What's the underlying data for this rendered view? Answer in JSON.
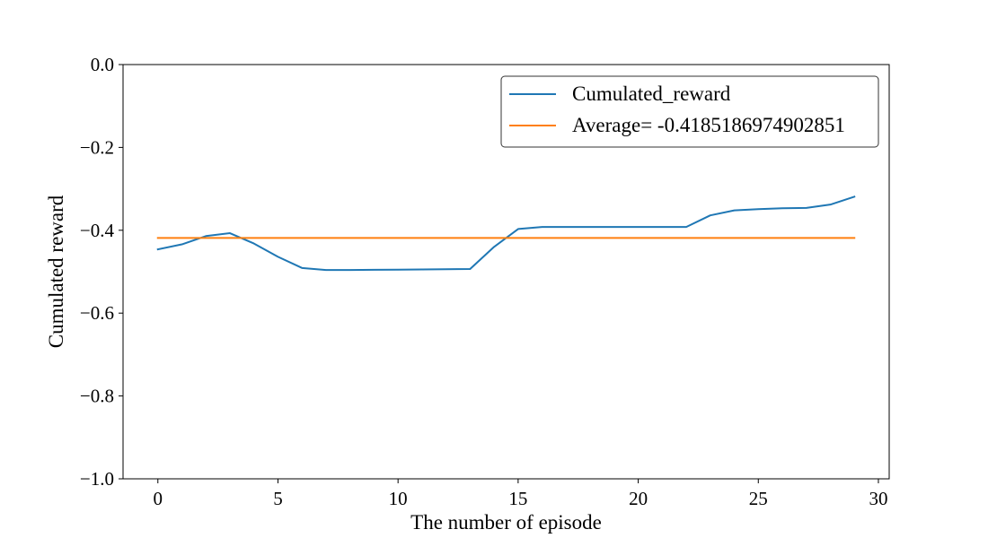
{
  "chart_data": {
    "type": "line",
    "title": "",
    "xlabel": "The number of episode",
    "ylabel": "Cumulated reward",
    "xlim": [
      -1.45,
      30.45
    ],
    "ylim": [
      -1.0,
      0.0
    ],
    "xticks": [
      0,
      5,
      10,
      15,
      20,
      25,
      30
    ],
    "xtick_labels": [
      "0",
      "5",
      "10",
      "15",
      "20",
      "25",
      "30"
    ],
    "yticks": [
      0.0,
      -0.2,
      -0.4,
      -0.6,
      -0.8,
      -1.0
    ],
    "ytick_labels": [
      "0.0",
      "−0.2",
      "−0.4",
      "−0.6",
      "−0.8",
      "−1.0"
    ],
    "grid": false,
    "legend_position": "top-right",
    "series": [
      {
        "name": "Cumulated_reward",
        "color": "#1f77b4",
        "x": [
          0,
          1,
          2,
          3,
          4,
          5,
          6,
          7,
          8,
          9,
          10,
          11,
          12,
          13,
          14,
          15,
          16,
          17,
          18,
          19,
          20,
          21,
          22,
          23,
          24,
          25,
          26,
          27,
          28,
          29
        ],
        "values": [
          -0.446,
          -0.434,
          -0.414,
          -0.407,
          -0.432,
          -0.464,
          -0.491,
          -0.496,
          -0.496,
          -0.4955,
          -0.495,
          -0.4945,
          -0.494,
          -0.4935,
          -0.44,
          -0.397,
          -0.392,
          -0.392,
          -0.392,
          -0.392,
          -0.392,
          -0.392,
          -0.392,
          -0.364,
          -0.352,
          -0.349,
          -0.347,
          -0.346,
          -0.338,
          -0.319
        ]
      },
      {
        "name": "Average= -0.4185186974902851",
        "color": "#ff7f0e",
        "x": [
          0,
          29
        ],
        "values": [
          -0.4185186974902851,
          -0.4185186974902851
        ]
      }
    ]
  }
}
